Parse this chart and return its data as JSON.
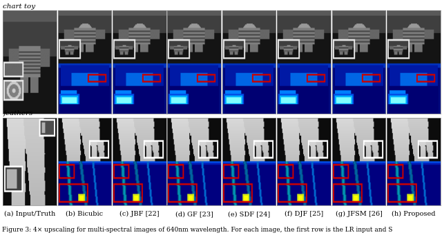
{
  "col_labels": [
    "(a) Input/Truth",
    "(b) Bicubic",
    "(c) JBF [22]",
    "(d) GF [23]",
    "(e) SDF [24]",
    "(f) DJF [25]",
    "(g) JFSM [26]",
    "(h) Proposed"
  ],
  "row_label_1": "chart toy",
  "row_label_2": "feathers",
  "caption": "Figure 3: 4× upscaling for multi-spectral images of 640nm wavelength. For each image, the first row is the LR input and S",
  "bg_color": "#ffffff",
  "label_fontsize": 7.0,
  "caption_fontsize": 6.5,
  "row_label_fontsize": 7.5,
  "n_cols": 8
}
